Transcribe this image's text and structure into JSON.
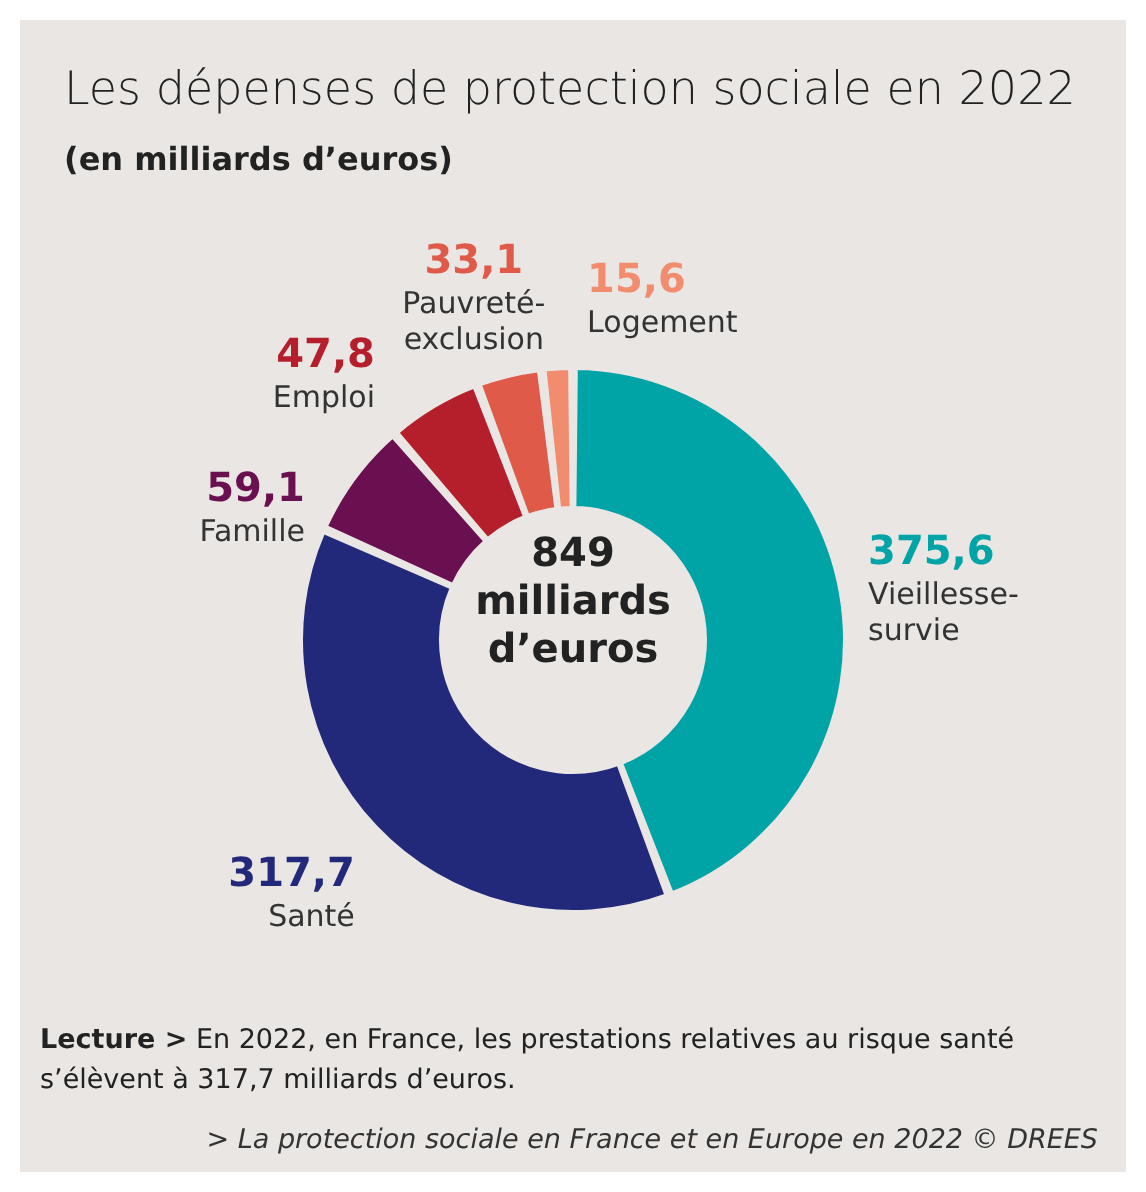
{
  "chart_data": {
    "type": "donut",
    "title": "Les dépenses de protection sociale en 2022",
    "subtitle": "(en milliards d’euros)",
    "categories": [
      "Vieillesse-survie",
      "Santé",
      "Famille",
      "Emploi",
      "Pauvreté-exclusion",
      "Logement"
    ],
    "values": [
      375.6,
      317.7,
      59.1,
      47.8,
      33.1,
      15.6
    ],
    "value_labels": [
      "375,6",
      "317,7",
      "59,1",
      "47,8",
      "33,1",
      "15,6"
    ],
    "colors": [
      "#00a3a6",
      "#22297a",
      "#6a0f4f",
      "#b51f2b",
      "#e05a4a",
      "#f28c6e"
    ],
    "annotations": [
      "849 milliards d’euros",
      "Lecture > En 2022, en France, les prestations relatives au risque santé s’élèvent à 317,7 milliards d’euros.",
      "> La protection sociale en France et en Europe en 2022 © DREES"
    ],
    "legend": false
  }
}
